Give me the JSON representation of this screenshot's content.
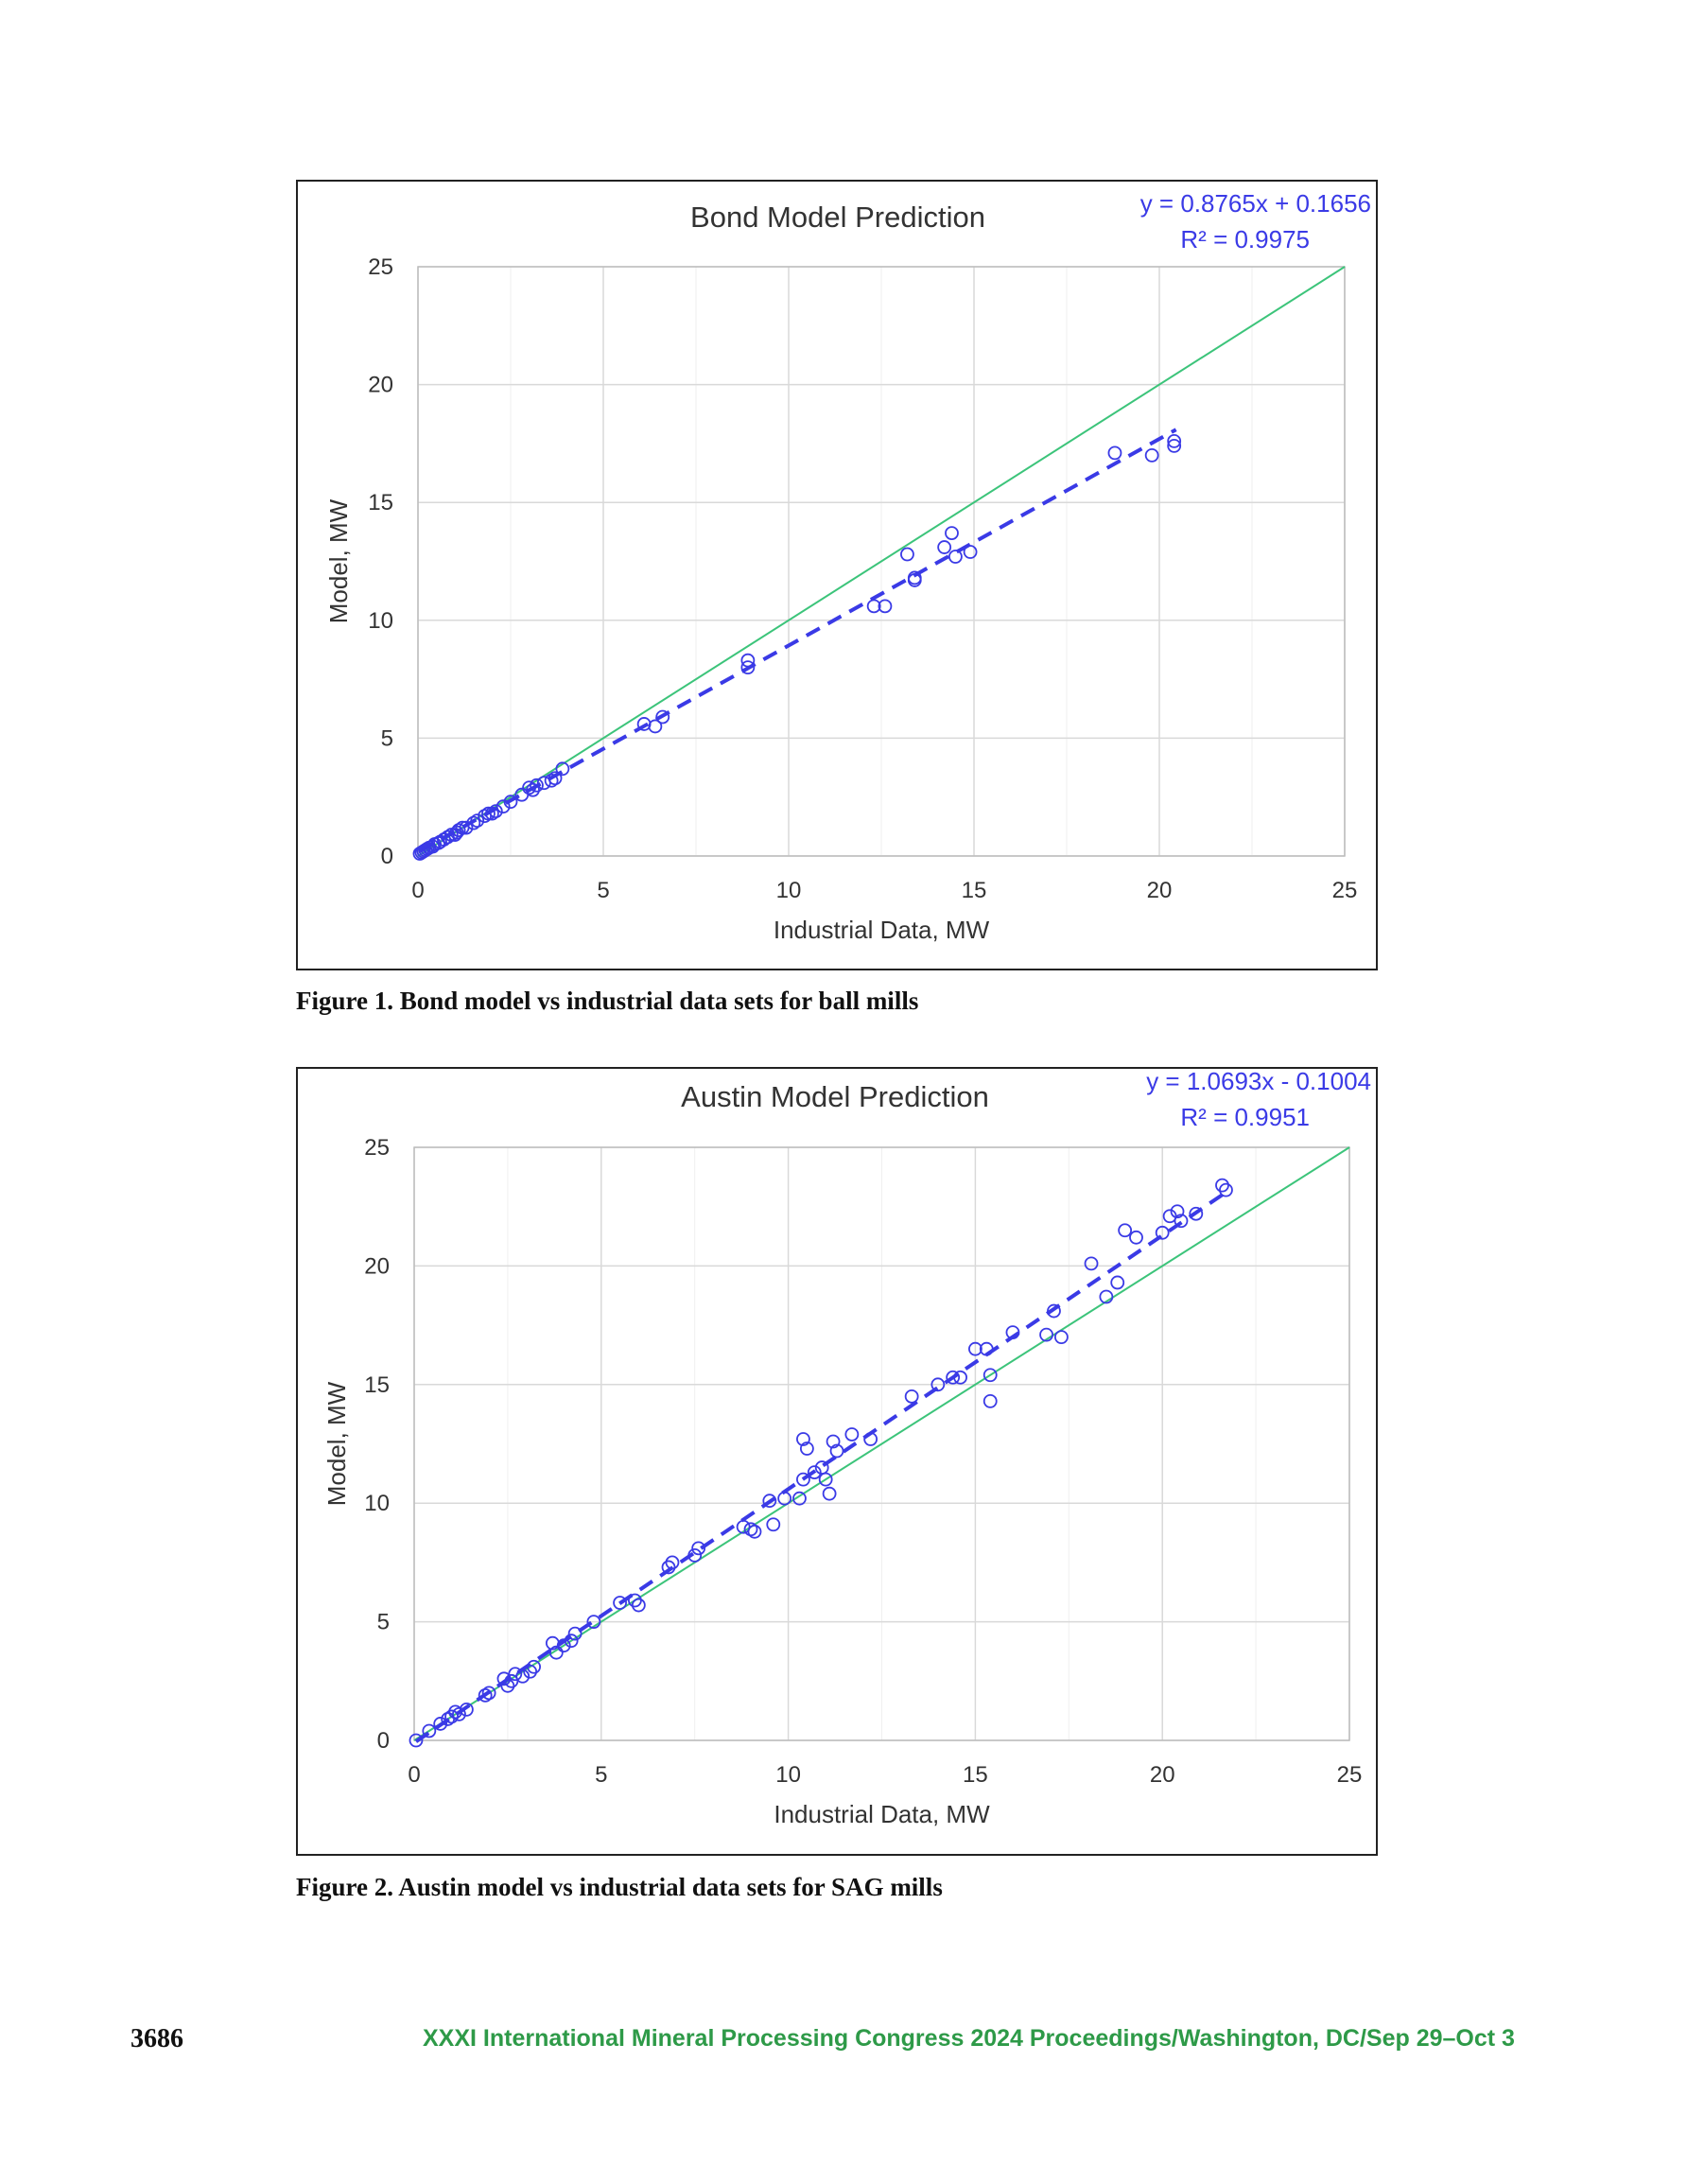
{
  "page": {
    "page_number": "3686",
    "footer": "XXXI International Mineral Processing Congress 2024 Proceedings/Washington, DC/Sep 29–Oct 3"
  },
  "colors": {
    "points": "#3a3ae6",
    "trend": "#3a3ae6",
    "identity": "#3cc47a",
    "grid": "#d9d9d9",
    "axis_text": "#333333",
    "footer": "#2e9a48"
  },
  "chart_data": [
    {
      "type": "scatter",
      "caption": "Figure 1. Bond model vs industrial data sets for ball mills",
      "title": "Bond Model Prediction",
      "xlabel": "Industrial Data, MW",
      "ylabel": "Model, MW",
      "xlim": [
        0,
        25
      ],
      "ylim": [
        0,
        25
      ],
      "xticks": [
        "0",
        "5",
        "10",
        "15",
        "20",
        "25"
      ],
      "yticks": [
        "0",
        "5",
        "10",
        "15",
        "20",
        "25"
      ],
      "grid": true,
      "legend": "none",
      "trendline": {
        "style": "dashed",
        "equation": "y = 0.8765x + 0.1656",
        "r2": "R² = 0.9975",
        "slope": 0.8765,
        "intercept": 0.1656,
        "x_range": [
          0.05,
          20.45
        ]
      },
      "identity_line": {
        "style": "solid",
        "x_range": [
          0,
          25
        ]
      },
      "points": [
        [
          0.05,
          0.1
        ],
        [
          0.1,
          0.15
        ],
        [
          0.15,
          0.2
        ],
        [
          0.2,
          0.25
        ],
        [
          0.25,
          0.3
        ],
        [
          0.3,
          0.35
        ],
        [
          0.4,
          0.4
        ],
        [
          0.45,
          0.5
        ],
        [
          0.55,
          0.55
        ],
        [
          0.6,
          0.6
        ],
        [
          0.7,
          0.7
        ],
        [
          0.8,
          0.8
        ],
        [
          0.9,
          0.9
        ],
        [
          1.0,
          0.9
        ],
        [
          1.05,
          1.0
        ],
        [
          1.1,
          1.1
        ],
        [
          1.2,
          1.2
        ],
        [
          1.3,
          1.2
        ],
        [
          1.5,
          1.4
        ],
        [
          1.6,
          1.5
        ],
        [
          1.8,
          1.7
        ],
        [
          1.9,
          1.8
        ],
        [
          2.0,
          1.8
        ],
        [
          2.1,
          1.9
        ],
        [
          2.3,
          2.1
        ],
        [
          2.5,
          2.3
        ],
        [
          2.8,
          2.6
        ],
        [
          3.0,
          2.9
        ],
        [
          3.1,
          2.8
        ],
        [
          3.2,
          3.0
        ],
        [
          3.4,
          3.1
        ],
        [
          3.6,
          3.2
        ],
        [
          3.7,
          3.3
        ],
        [
          3.9,
          3.7
        ],
        [
          6.1,
          5.6
        ],
        [
          6.4,
          5.5
        ],
        [
          6.6,
          5.9
        ],
        [
          8.9,
          8.3
        ],
        [
          8.9,
          8.0
        ],
        [
          12.3,
          10.6
        ],
        [
          12.6,
          10.6
        ],
        [
          13.2,
          12.8
        ],
        [
          13.4,
          11.8
        ],
        [
          13.4,
          11.7
        ],
        [
          14.2,
          13.1
        ],
        [
          14.4,
          13.7
        ],
        [
          14.5,
          12.7
        ],
        [
          14.9,
          12.9
        ],
        [
          18.8,
          17.1
        ],
        [
          19.8,
          17.0
        ],
        [
          20.4,
          17.6
        ],
        [
          20.4,
          17.4
        ]
      ]
    },
    {
      "type": "scatter",
      "caption": "Figure 2. Austin model vs industrial data sets for SAG mills",
      "title": "Austin Model Prediction",
      "xlabel": "Industrial Data, MW",
      "ylabel": "Model, MW",
      "xlim": [
        0,
        25
      ],
      "ylim": [
        0,
        25
      ],
      "xticks": [
        "0",
        "5",
        "10",
        "15",
        "20",
        "25"
      ],
      "yticks": [
        "0",
        "5",
        "10",
        "15",
        "20",
        "25"
      ],
      "grid": true,
      "legend": "none",
      "trendline": {
        "style": "dashed",
        "equation": "y = 1.0693x - 0.1004",
        "r2": "R² = 0.9951",
        "slope": 1.0693,
        "intercept": -0.1004,
        "x_range": [
          0.05,
          21.7
        ]
      },
      "identity_line": {
        "style": "solid",
        "x_range": [
          0,
          25
        ]
      },
      "points": [
        [
          0.05,
          0.0
        ],
        [
          0.4,
          0.4
        ],
        [
          0.7,
          0.7
        ],
        [
          0.9,
          0.9
        ],
        [
          1.0,
          1.0
        ],
        [
          1.1,
          1.2
        ],
        [
          1.2,
          1.1
        ],
        [
          1.4,
          1.3
        ],
        [
          1.9,
          1.9
        ],
        [
          2.0,
          2.0
        ],
        [
          2.4,
          2.6
        ],
        [
          2.5,
          2.3
        ],
        [
          2.6,
          2.5
        ],
        [
          2.7,
          2.8
        ],
        [
          2.9,
          2.7
        ],
        [
          3.1,
          2.9
        ],
        [
          3.2,
          3.1
        ],
        [
          3.7,
          4.1
        ],
        [
          3.8,
          3.7
        ],
        [
          4.0,
          4.0
        ],
        [
          4.2,
          4.2
        ],
        [
          4.3,
          4.5
        ],
        [
          4.8,
          5.0
        ],
        [
          5.5,
          5.8
        ],
        [
          5.9,
          5.9
        ],
        [
          6.0,
          5.7
        ],
        [
          6.8,
          7.3
        ],
        [
          6.9,
          7.5
        ],
        [
          7.5,
          7.8
        ],
        [
          7.6,
          8.1
        ],
        [
          8.8,
          9.0
        ],
        [
          9.0,
          8.9
        ],
        [
          9.1,
          8.8
        ],
        [
          9.5,
          10.1
        ],
        [
          9.6,
          9.1
        ],
        [
          9.9,
          10.2
        ],
        [
          10.3,
          10.2
        ],
        [
          10.4,
          11.0
        ],
        [
          10.4,
          12.7
        ],
        [
          10.5,
          12.3
        ],
        [
          10.7,
          11.3
        ],
        [
          10.9,
          11.5
        ],
        [
          11.0,
          11.0
        ],
        [
          11.1,
          10.4
        ],
        [
          11.2,
          12.6
        ],
        [
          11.3,
          12.2
        ],
        [
          11.7,
          12.9
        ],
        [
          12.2,
          12.7
        ],
        [
          13.3,
          14.5
        ],
        [
          14.0,
          15.0
        ],
        [
          14.4,
          15.3
        ],
        [
          14.6,
          15.3
        ],
        [
          15.0,
          16.5
        ],
        [
          15.3,
          16.5
        ],
        [
          15.4,
          15.4
        ],
        [
          15.4,
          14.3
        ],
        [
          16.0,
          17.2
        ],
        [
          16.9,
          17.1
        ],
        [
          17.1,
          18.1
        ],
        [
          17.3,
          17.0
        ],
        [
          18.1,
          20.1
        ],
        [
          18.5,
          18.7
        ],
        [
          18.8,
          19.3
        ],
        [
          19.0,
          21.5
        ],
        [
          19.3,
          21.2
        ],
        [
          20.0,
          21.4
        ],
        [
          20.2,
          22.1
        ],
        [
          20.4,
          22.3
        ],
        [
          20.5,
          21.9
        ],
        [
          20.9,
          22.2
        ],
        [
          21.6,
          23.4
        ],
        [
          21.7,
          23.2
        ]
      ]
    }
  ]
}
